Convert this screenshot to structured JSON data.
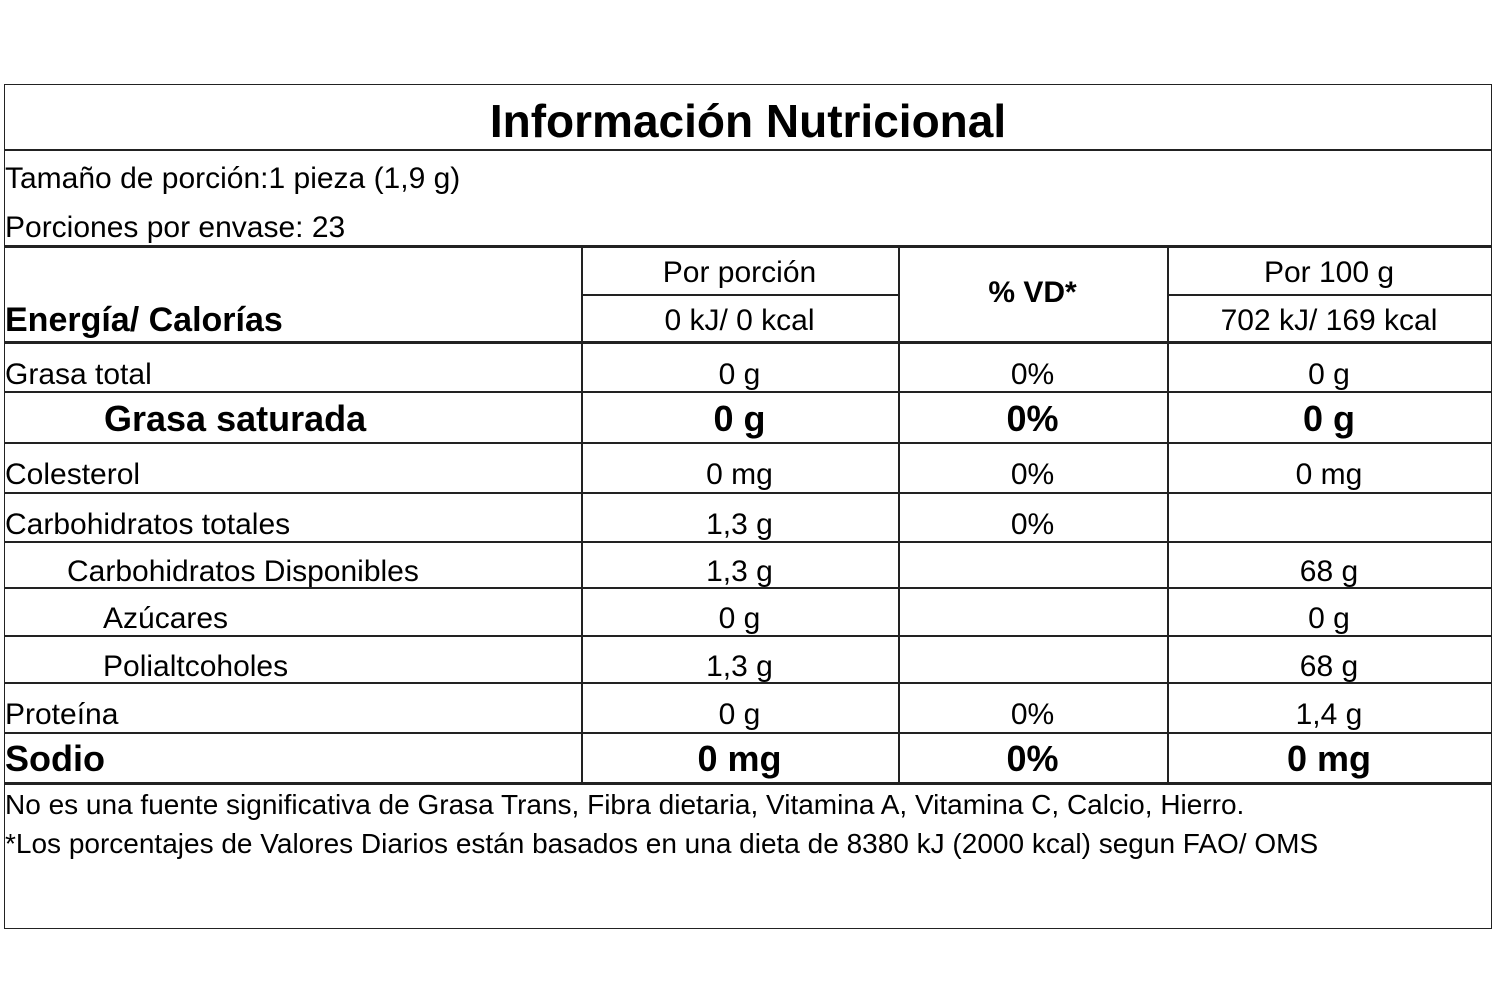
{
  "title": "Información Nutricional",
  "serving_size": "Tamaño de porción:1 pieza (1,9 g)",
  "servings_per_container": "Porciones por envase: 23",
  "header": {
    "energy_label": "Energía/ Calorías",
    "per_serving": "Por porción",
    "per_serving_energy": "0 kJ/ 0 kcal",
    "dv": "% VD*",
    "per_100": "Por 100 g",
    "per_100_energy": "702 kJ/ 169 kcal"
  },
  "rows": [
    {
      "name": "Grasa total",
      "per_serving": "0 g",
      "dv": "0%",
      "per_100": "0 g"
    },
    {
      "name": "Grasa saturada",
      "per_serving": "0 g",
      "dv": "0%",
      "per_100": "0 g"
    },
    {
      "name": "Colesterol",
      "per_serving": "0 mg",
      "dv": "0%",
      "per_100": "0 mg"
    },
    {
      "name": "Carbohidratos totales",
      "per_serving": "1,3 g",
      "dv": "0%"
    },
    {
      "name": "Carbohidratos Disponibles",
      "per_serving": "1,3 g",
      "per_100": "68 g"
    },
    {
      "name": "Azúcares",
      "per_serving": "0 g",
      "per_100": "0 g"
    },
    {
      "name": "Polialtcoholes",
      "per_serving": "1,3 g",
      "per_100": "68 g"
    },
    {
      "name": "Proteína",
      "per_serving": "0 g",
      "dv": "0%",
      "per_100": "1,4 g"
    },
    {
      "name": "Sodio",
      "per_serving": "0 mg",
      "dv": "0%",
      "per_100": "0 mg"
    }
  ],
  "footer": [
    "No es una fuente significativa de Grasa Trans, Fibra dietaria, Vitamina A, Vitamina C, Calcio, Hierro.",
    "*Los porcentajes de Valores Diarios están basados en una dieta de 8380 kJ (2000 kcal) segun FAO/ OMS"
  ]
}
